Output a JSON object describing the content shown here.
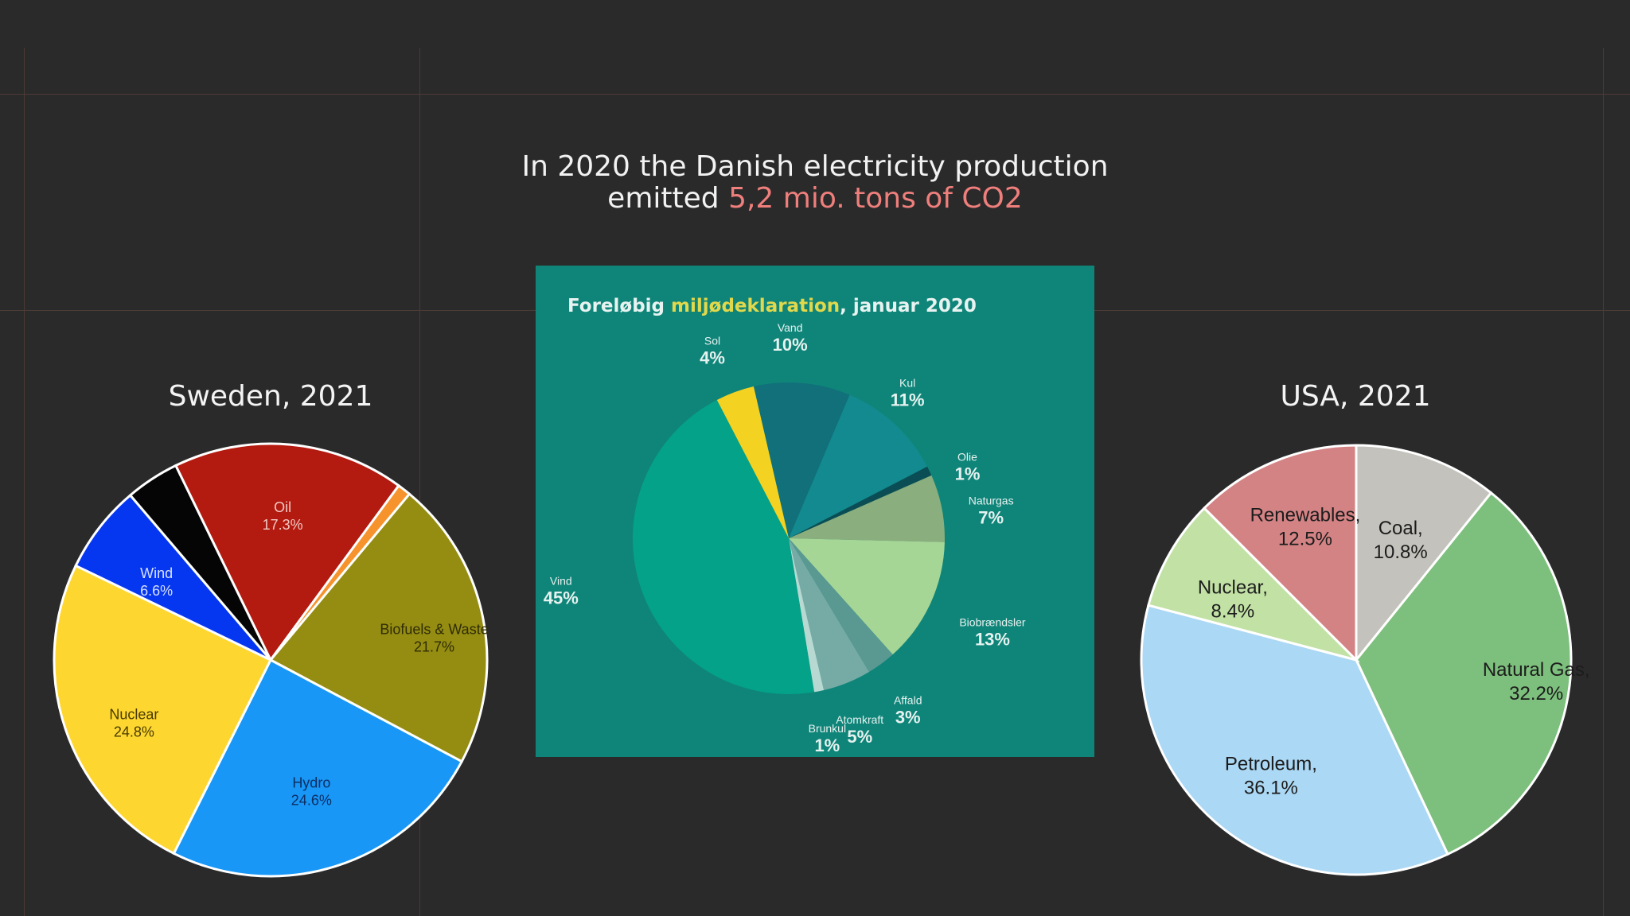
{
  "headline": {
    "line1": "In 2020 the Danish electricity production",
    "line2_prefix": "emitted ",
    "line2_highlight": "5,2 mio. tons of CO2"
  },
  "colors": {
    "background": "#2b2a2a",
    "highlight": "#ef7f7c",
    "dk_panel": "#0f8579",
    "dk_title_highlight": "#e2d84c"
  },
  "chart_data": [
    {
      "type": "pie",
      "title": "Sweden, 2021",
      "slices": [
        {
          "label": "Oil",
          "value": 17.3,
          "value_label": "17.3%",
          "color": "#b31a10",
          "text_color": "#f1c9c3"
        },
        {
          "label": "",
          "value": 1.0,
          "value_label": "",
          "color": "#f7932d"
        },
        {
          "label": "Biofuels & Waste",
          "value": 21.7,
          "value_label": "21.7%",
          "color": "#958d12",
          "text_color": "#2f2c05"
        },
        {
          "label": "Hydro",
          "value": 24.6,
          "value_label": "24.6%",
          "color": "#1897f7",
          "text_color": "#0b2f63"
        },
        {
          "label": "Nuclear",
          "value": 24.8,
          "value_label": "24.8%",
          "color": "#fdd730",
          "text_color": "#4a3a00"
        },
        {
          "label": "Wind",
          "value": 6.6,
          "value_label": "6.6%",
          "color": "#0637f0",
          "text_color": "#d7e0ff"
        },
        {
          "label": "",
          "value": 4.0,
          "value_label": "",
          "color": "#050505"
        }
      ]
    },
    {
      "type": "pie",
      "title_prefix": "Foreløbig ",
      "title_highlight": "miljødeklaration",
      "title_suffix": ", januar 2020",
      "slices": [
        {
          "label": "Vand",
          "value": 10,
          "value_label": "10%",
          "color": "#11707a"
        },
        {
          "label": "Kul",
          "value": 11,
          "value_label": "11%",
          "color": "#128a8f"
        },
        {
          "label": "Olie",
          "value": 1,
          "value_label": "1%",
          "color": "#0b4d55"
        },
        {
          "label": "Naturgas",
          "value": 7,
          "value_label": "7%",
          "color": "#8aae7d"
        },
        {
          "label": "Biobrændsler",
          "value": 13,
          "value_label": "13%",
          "color": "#a6d696"
        },
        {
          "label": "Affald",
          "value": 3,
          "value_label": "3%",
          "color": "#5a9992"
        },
        {
          "label": "Atomkraft",
          "value": 5,
          "value_label": "5%",
          "color": "#76aba5"
        },
        {
          "label": "Brunkul",
          "value": 1,
          "value_label": "1%",
          "color": "#b8d8d2"
        },
        {
          "label": "Vind",
          "value": 45,
          "value_label": "45%",
          "color": "#03a289"
        },
        {
          "label": "Sol",
          "value": 4,
          "value_label": "4%",
          "color": "#f4d221"
        }
      ]
    },
    {
      "type": "pie",
      "title": "USA, 2021",
      "slices": [
        {
          "label": "Coal,",
          "value": 10.8,
          "value_label": "10.8%",
          "color": "#c3c2bc"
        },
        {
          "label": "Natural Gas,",
          "value": 32.2,
          "value_label": "32.2%",
          "color": "#7dbf7d"
        },
        {
          "label": "Petroleum,",
          "value": 36.1,
          "value_label": "36.1%",
          "color": "#abd8f4"
        },
        {
          "label": "Nuclear,",
          "value": 8.4,
          "value_label": "8.4%",
          "color": "#c2e1a5"
        },
        {
          "label": "Renewables,",
          "value": 12.5,
          "value_label": "12.5%",
          "color": "#d48385"
        }
      ]
    }
  ]
}
